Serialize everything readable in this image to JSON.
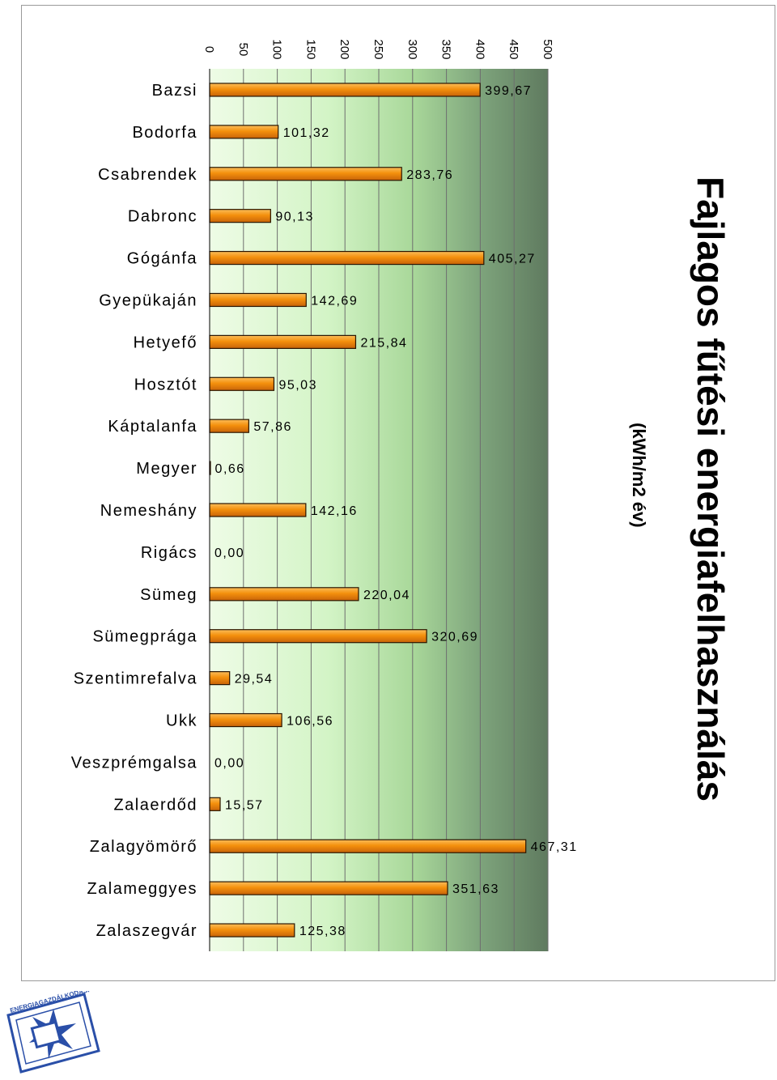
{
  "chart_data": {
    "type": "bar",
    "orientation": "horizontal-rotated",
    "title": "Fajlagos fűtési energiafelhasználás",
    "subtitle": "(kWh/m2 év)",
    "categories": [
      "Bazsi",
      "Bodorfa",
      "Csabrendek",
      "Dabronc",
      "Gógánfa",
      "Gyepükaján",
      "Hetyefő",
      "Hosztót",
      "Káptalanfa",
      "Megyer",
      "Nemeshány",
      "Rigács",
      "Sümeg",
      "Sümegprága",
      "Szentimrefalva",
      "Ukk",
      "Veszprémgalsa",
      "Zalaerdőd",
      "Zalagyömörő",
      "Zalameggyes",
      "Zalaszegvár"
    ],
    "values": [
      399.67,
      101.32,
      283.76,
      90.13,
      405.27,
      142.69,
      215.84,
      95.03,
      57.86,
      0.66,
      142.16,
      0.0,
      220.04,
      320.69,
      29.54,
      106.56,
      0.0,
      15.57,
      467.31,
      351.63,
      125.38
    ],
    "value_labels": [
      "399,67",
      "101,32",
      "283,76",
      "90,13",
      "405,27",
      "142,69",
      "215,84",
      "95,03",
      "57,86",
      "0,66",
      "142,16",
      "0,00",
      "220,04",
      "320,69",
      "29,54",
      "106,56",
      "0,00",
      "15,57",
      "467,31",
      "351,63",
      "125,38"
    ],
    "axis": {
      "min": 0,
      "max": 500,
      "step": 50,
      "tick_labels": [
        "0",
        "50",
        "100",
        "150",
        "200",
        "250",
        "300",
        "350",
        "400",
        "450",
        "500"
      ]
    },
    "grid": true,
    "colors": {
      "bar_fill": "#f4900c",
      "bar_fill_light": "#fbbd5a",
      "bar_fill_dark": "#d2691e",
      "bar_stroke": "#2a1500",
      "bg_light": "#eefce6",
      "bg_mid": "#b6e6a6",
      "bg_dark": "#5f7a5f"
    }
  },
  "logo": {
    "icon": "energy-agency-seal-icon",
    "text": "ENERGIAGAZDÁLKODÁSI"
  }
}
